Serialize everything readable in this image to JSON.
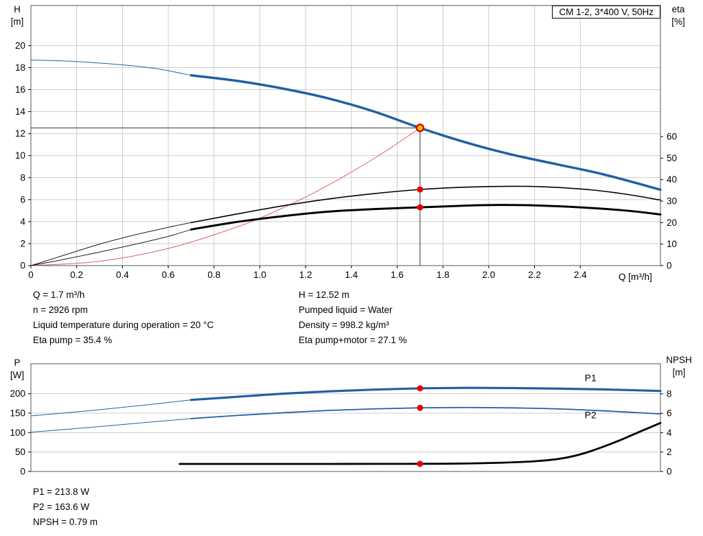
{
  "colors": {
    "blue": "#2160a4",
    "black": "#000000",
    "red_dot": "#e60000",
    "system_red": "#e06060",
    "duty_fill": "#ffd400",
    "grid": "#cccccc",
    "frame": "#555555",
    "duty_line": "#333333"
  },
  "info_panel": {
    "left": [
      "Q = 1.7 m³/h",
      "n = 2926 rpm",
      "Liquid temperature during operation = 20 °C",
      "Eta pump = 35.4 %"
    ],
    "right": [
      "H = 12.52 m",
      "Pumped liquid = Water",
      "Density = 998.2 kg/m³",
      "Eta pump+motor = 27.1 %"
    ]
  },
  "footer_lines": [
    "P1 = 213.8 W",
    "P2 = 163.6 W",
    "NPSH = 0.79 m"
  ],
  "chart_data": [
    {
      "type": "line",
      "name": "qh-eta-chart",
      "title": "CM 1-2, 3*400 V, 50Hz",
      "x_label": "Q [m³/h]",
      "y_left_label": "H",
      "y_left_unit": "[m]",
      "y_right_label": "eta",
      "y_right_unit": "[%]",
      "x_range": [
        0,
        2.75
      ],
      "y_left_range": [
        0,
        23.65
      ],
      "y_right_range": [
        0,
        121
      ],
      "x_ticks": [
        [
          0,
          "0"
        ],
        [
          0.2,
          "0.2"
        ],
        [
          0.4,
          "0.4"
        ],
        [
          0.6,
          "0.6"
        ],
        [
          0.8,
          "0.8"
        ],
        [
          1,
          "1.0"
        ],
        [
          1.2,
          "1.2"
        ],
        [
          1.4,
          "1.4"
        ],
        [
          1.6,
          "1.6"
        ],
        [
          1.8,
          "1.8"
        ],
        [
          2,
          "2.0"
        ],
        [
          2.2,
          "2.2"
        ],
        [
          2.4,
          "2.4"
        ]
      ],
      "y_left_ticks": [
        [
          0,
          "0"
        ],
        [
          2,
          "2"
        ],
        [
          4,
          "4"
        ],
        [
          6,
          "6"
        ],
        [
          8,
          "8"
        ],
        [
          10,
          "10"
        ],
        [
          12,
          "12"
        ],
        [
          14,
          "14"
        ],
        [
          16,
          "16"
        ],
        [
          18,
          "18"
        ],
        [
          20,
          "20"
        ]
      ],
      "y_right_ticks": [
        [
          0,
          "0"
        ],
        [
          10,
          "10"
        ],
        [
          20,
          "20"
        ],
        [
          30,
          "30"
        ],
        [
          40,
          "40"
        ],
        [
          50,
          "50"
        ],
        [
          60,
          "60"
        ]
      ],
      "series": [
        {
          "name": "head-curve-thin",
          "axis": "left",
          "color": "blue",
          "width": 1,
          "points": [
            [
              0,
              18.7
            ],
            [
              0.2,
              18.55
            ],
            [
              0.4,
              18.25
            ],
            [
              0.55,
              17.9
            ],
            [
              0.7,
              17.3
            ]
          ]
        },
        {
          "name": "head-curve",
          "axis": "left",
          "color": "blue",
          "width": 3.5,
          "points": [
            [
              0.7,
              17.3
            ],
            [
              0.9,
              16.8
            ],
            [
              1.1,
              16.1
            ],
            [
              1.3,
              15.2
            ],
            [
              1.5,
              14.0
            ],
            [
              1.7,
              12.52
            ],
            [
              1.9,
              11.2
            ],
            [
              2.1,
              10.1
            ],
            [
              2.3,
              9.2
            ],
            [
              2.5,
              8.3
            ],
            [
              2.75,
              6.9
            ]
          ]
        },
        {
          "name": "system-curve",
          "axis": "left",
          "color": "system_red",
          "width": 1,
          "points": [
            [
              0,
              0
            ],
            [
              0.3,
              0.39
            ],
            [
              0.6,
              1.56
            ],
            [
              0.9,
              3.51
            ],
            [
              1.1,
              5.24
            ],
            [
              1.3,
              7.32
            ],
            [
              1.5,
              9.75
            ],
            [
              1.6,
              11.1
            ],
            [
              1.7,
              12.52
            ]
          ]
        },
        {
          "name": "eta-pump-thin",
          "axis": "right",
          "color": "black",
          "width": 0.9,
          "points": [
            [
              0,
              0
            ],
            [
              0.15,
              5
            ],
            [
              0.3,
              10
            ],
            [
              0.45,
              14.2
            ],
            [
              0.6,
              17.8
            ],
            [
              0.7,
              20
            ]
          ]
        },
        {
          "name": "eta-pump",
          "axis": "right",
          "color": "black",
          "width": 1.6,
          "points": [
            [
              0.7,
              20
            ],
            [
              0.9,
              24
            ],
            [
              1.1,
              27.8
            ],
            [
              1.3,
              31
            ],
            [
              1.5,
              33.5
            ],
            [
              1.7,
              35.4
            ],
            [
              1.9,
              36.5
            ],
            [
              2.1,
              36.9
            ],
            [
              2.25,
              36.6
            ],
            [
              2.45,
              35.2
            ],
            [
              2.6,
              33.2
            ],
            [
              2.75,
              30.5
            ]
          ]
        },
        {
          "name": "eta-pump-motor-thin",
          "axis": "right",
          "color": "black",
          "width": 0.9,
          "points": [
            [
              0,
              0
            ],
            [
              0.15,
              3
            ],
            [
              0.3,
              6.3
            ],
            [
              0.45,
              9.8
            ],
            [
              0.6,
              13.6
            ],
            [
              0.7,
              16.8
            ]
          ]
        },
        {
          "name": "eta-pump-motor",
          "axis": "right",
          "color": "black",
          "width": 3,
          "points": [
            [
              0.7,
              16.8
            ],
            [
              0.9,
              20.3
            ],
            [
              1.1,
              23
            ],
            [
              1.3,
              25.1
            ],
            [
              1.5,
              26.3
            ],
            [
              1.7,
              27.1
            ],
            [
              1.9,
              27.9
            ],
            [
              2.05,
              28.2
            ],
            [
              2.2,
              28.0
            ],
            [
              2.4,
              27.1
            ],
            [
              2.6,
              25.6
            ],
            [
              2.75,
              23.8
            ]
          ]
        }
      ],
      "duty_point": {
        "q": 1.7,
        "h": 12.52
      },
      "markers": [
        {
          "name": "eta-pump-dot",
          "type": "dot",
          "axis": "right",
          "x": 1.7,
          "y": 35.4
        },
        {
          "name": "eta-pump-motor-dot",
          "type": "dot",
          "axis": "right",
          "x": 1.7,
          "y": 27.1
        },
        {
          "name": "duty-point",
          "type": "duty",
          "axis": "left",
          "x": 1.7,
          "y": 12.52
        }
      ],
      "labels": []
    },
    {
      "type": "line",
      "name": "power-npsh-chart",
      "title": "",
      "x_label": "",
      "y_left_label": "P",
      "y_left_unit": "[W]",
      "y_right_label": "NPSH",
      "y_right_unit": "[m]",
      "x_range": [
        0,
        2.75
      ],
      "y_left_range": [
        0,
        277
      ],
      "y_right_range": [
        0,
        11.1
      ],
      "x_ticks": [],
      "y_left_ticks": [
        [
          0,
          "0"
        ],
        [
          50,
          "50"
        ],
        [
          100,
          "100"
        ],
        [
          150,
          "150"
        ],
        [
          200,
          "200"
        ]
      ],
      "y_right_ticks": [
        [
          0,
          "0"
        ],
        [
          2,
          "2"
        ],
        [
          4,
          "4"
        ],
        [
          6,
          "6"
        ],
        [
          8,
          "8"
        ]
      ],
      "series": [
        {
          "name": "p1-curve-thin",
          "axis": "left",
          "color": "blue",
          "width": 1,
          "points": [
            [
              0,
              143
            ],
            [
              0.25,
              156
            ],
            [
              0.5,
              171
            ],
            [
              0.7,
              184
            ]
          ]
        },
        {
          "name": "p1-curve",
          "axis": "left",
          "color": "blue",
          "width": 3.2,
          "points": [
            [
              0.7,
              184
            ],
            [
              0.9,
              192
            ],
            [
              1.1,
              200
            ],
            [
              1.3,
              206
            ],
            [
              1.5,
              210.5
            ],
            [
              1.7,
              213.8
            ],
            [
              1.9,
              215
            ],
            [
              2.1,
              214.5
            ],
            [
              2.3,
              213
            ],
            [
              2.5,
              211
            ],
            [
              2.75,
              207
            ]
          ]
        },
        {
          "name": "p2-curve-thin",
          "axis": "left",
          "color": "blue",
          "width": 1,
          "points": [
            [
              0,
              101
            ],
            [
              0.25,
              113
            ],
            [
              0.5,
              126
            ],
            [
              0.7,
              136
            ]
          ]
        },
        {
          "name": "p2-curve",
          "axis": "left",
          "color": "blue",
          "width": 1.8,
          "points": [
            [
              0.7,
              136
            ],
            [
              0.9,
              144
            ],
            [
              1.1,
              151
            ],
            [
              1.3,
              157
            ],
            [
              1.5,
              161
            ],
            [
              1.7,
              163.6
            ],
            [
              1.9,
              164.5
            ],
            [
              2.1,
              163.5
            ],
            [
              2.3,
              161
            ],
            [
              2.5,
              156
            ],
            [
              2.75,
              148
            ]
          ]
        },
        {
          "name": "npsh-curve",
          "axis": "right",
          "color": "black",
          "width": 2.8,
          "points": [
            [
              0.65,
              0.78
            ],
            [
              1.0,
              0.78
            ],
            [
              1.3,
              0.78
            ],
            [
              1.55,
              0.785
            ],
            [
              1.7,
              0.79
            ],
            [
              1.9,
              0.82
            ],
            [
              2.05,
              0.9
            ],
            [
              2.2,
              1.05
            ],
            [
              2.32,
              1.35
            ],
            [
              2.42,
              1.9
            ],
            [
              2.55,
              3.0
            ],
            [
              2.65,
              4.0
            ],
            [
              2.75,
              5.0
            ]
          ]
        }
      ],
      "markers": [
        {
          "name": "p1-dot",
          "type": "dot",
          "axis": "left",
          "x": 1.7,
          "y": 213.8
        },
        {
          "name": "p2-dot",
          "type": "dot",
          "axis": "left",
          "x": 1.7,
          "y": 163.6
        },
        {
          "name": "npsh-dot",
          "type": "dot",
          "axis": "right",
          "x": 1.7,
          "y": 0.79
        }
      ],
      "labels": [
        {
          "text": "P1",
          "axis": "left",
          "x": 2.41,
          "y": 232,
          "color": "blue"
        },
        {
          "text": "P2",
          "axis": "left",
          "x": 2.41,
          "y": 137,
          "color": "blue"
        }
      ]
    }
  ]
}
